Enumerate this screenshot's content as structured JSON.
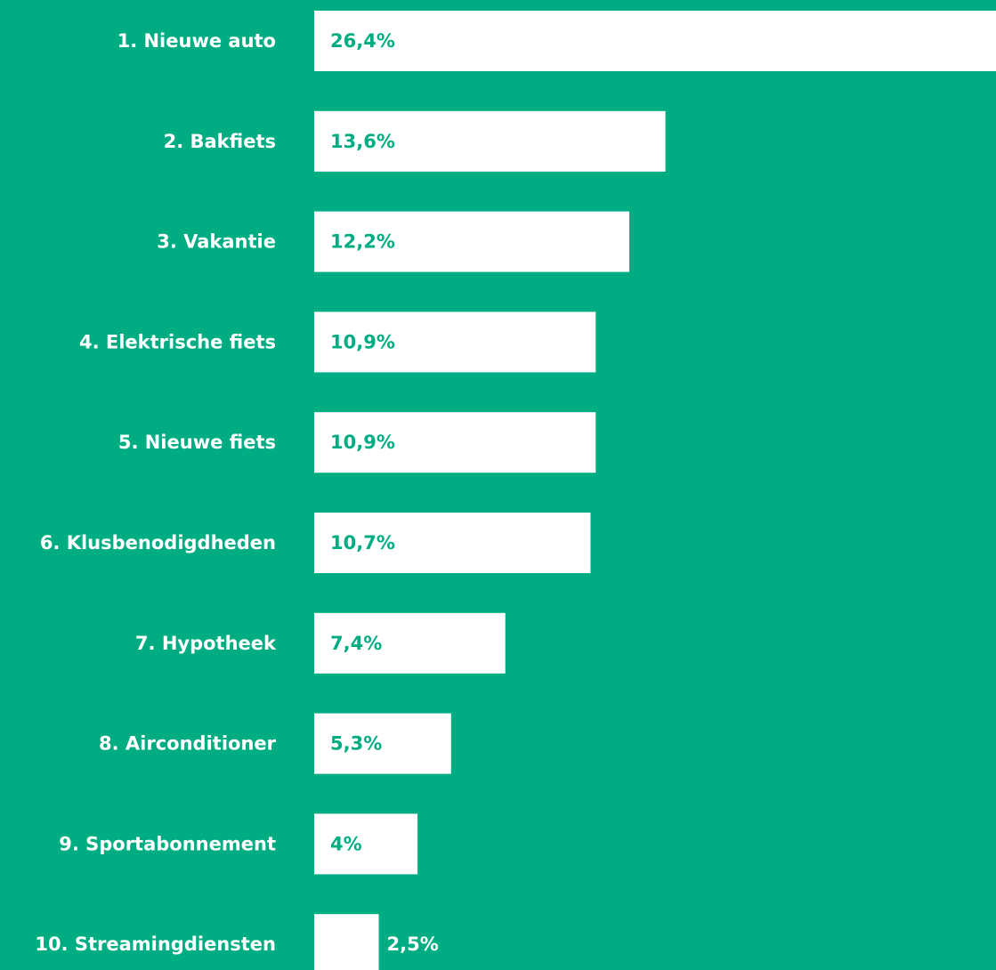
{
  "chart_data": {
    "type": "bar",
    "orientation": "horizontal",
    "categories": [
      "1. Nieuwe auto",
      "2. Bakfiets",
      "3. Vakantie",
      "4. Elektrische fiets",
      "5. Nieuwe fiets",
      "6. Klusbenodigdheden",
      "7. Hypotheek",
      "8. Airconditioner",
      "9. Sportabonnement",
      "10. Streamingdiensten"
    ],
    "values": [
      26.4,
      13.6,
      12.2,
      10.9,
      10.9,
      10.7,
      7.4,
      5.3,
      4,
      2.5
    ],
    "value_labels": [
      "26,4%",
      "13,6%",
      "12,2%",
      "10,9%",
      "10,9%",
      "10,7%",
      "7,4%",
      "5,3%",
      "4%",
      "2,5%"
    ],
    "color": "#ffffff"
  }
}
